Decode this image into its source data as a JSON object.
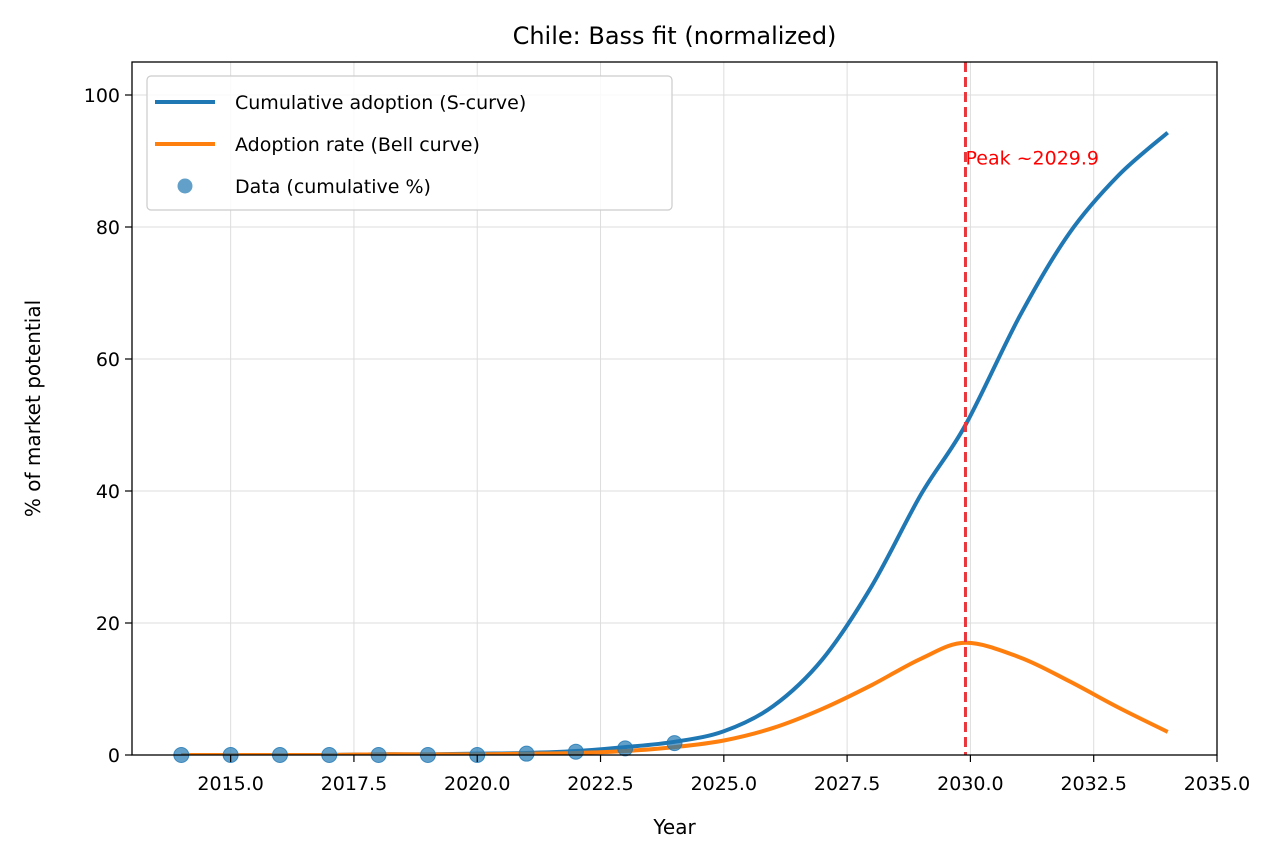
{
  "chart_data": {
    "type": "line",
    "title": "Chile: Bass fit (normalized)",
    "xlabel": "Year",
    "ylabel": "% of market potential",
    "xlim": [
      2013.0,
      2035.0
    ],
    "ylim": [
      0,
      105
    ],
    "x_ticks": [
      2015.0,
      2017.5,
      2020.0,
      2022.5,
      2025.0,
      2027.5,
      2030.0,
      2032.5,
      2035.0
    ],
    "x_tick_labels": [
      "2015.0",
      "2017.5",
      "2020.0",
      "2022.5",
      "2025.0",
      "2027.5",
      "2030.0",
      "2032.5",
      "2035.0"
    ],
    "y_ticks": [
      0,
      20,
      40,
      60,
      80,
      100
    ],
    "y_tick_labels": [
      "0",
      "20",
      "40",
      "60",
      "80",
      "100"
    ],
    "grid": true,
    "legend_position": "top-left",
    "series": [
      {
        "name": "Cumulative adoption (S-curve)",
        "kind": "line",
        "color": "#1f77b4",
        "x": [
          2014,
          2015,
          2016,
          2017,
          2018,
          2019,
          2020,
          2021,
          2022,
          2023,
          2024,
          2025,
          2026,
          2027,
          2028,
          2029,
          2029.9,
          2031,
          2032,
          2033,
          2034
        ],
        "values": [
          0.0,
          0.0,
          0.0,
          0.0,
          0.1,
          0.1,
          0.2,
          0.3,
          0.6,
          1.2,
          2.0,
          3.6,
          7.4,
          14.5,
          25.6,
          39.5,
          50.0,
          66.5,
          79.0,
          87.8,
          94.3
        ]
      },
      {
        "name": "Adoption rate (Bell curve)",
        "kind": "line",
        "color": "#ff7f0e",
        "x": [
          2014,
          2015,
          2016,
          2017,
          2018,
          2019,
          2020,
          2021,
          2022,
          2023,
          2024,
          2025,
          2026,
          2027,
          2028,
          2029,
          2029.9,
          2031,
          2032,
          2033,
          2034
        ],
        "values": [
          0.0,
          0.0,
          0.0,
          0.0,
          0.1,
          0.1,
          0.1,
          0.2,
          0.3,
          0.6,
          1.2,
          2.2,
          4.1,
          7.0,
          10.6,
          14.6,
          17.0,
          14.8,
          11.2,
          7.2,
          3.5
        ]
      },
      {
        "name": "Data (cumulative %)",
        "kind": "scatter",
        "color": "#1f77b4",
        "x": [
          2014,
          2015,
          2016,
          2017,
          2018,
          2019,
          2020,
          2021,
          2022,
          2023,
          2024
        ],
        "values": [
          0.0,
          0.0,
          0.0,
          0.0,
          0.0,
          0.0,
          0.0,
          0.2,
          0.5,
          1.0,
          1.8
        ]
      }
    ],
    "annotations": [
      {
        "type": "vline",
        "x": 2029.9,
        "color": "#e8383d",
        "style": "dashed"
      },
      {
        "type": "text",
        "text": "Peak ~2029.9",
        "x": 2029.9,
        "y": 90.5,
        "color": "#ff0000"
      }
    ]
  }
}
